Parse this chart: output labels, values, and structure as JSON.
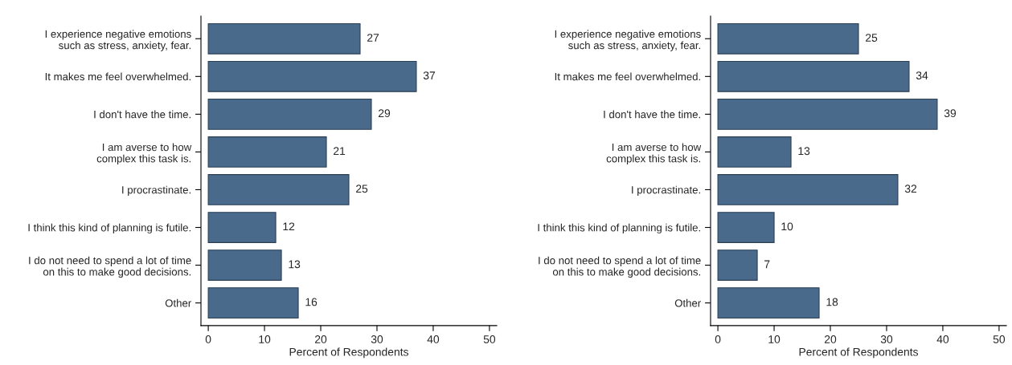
{
  "chart_data": [
    {
      "type": "bar",
      "orientation": "horizontal",
      "xlabel": "Percent of Respondents",
      "categories": [
        "I experience negative emotions\nsuch as stress, anxiety, fear.",
        "It makes me feel overwhelmed.",
        "I don't have the time.",
        "I am averse to how\ncomplex this task is.",
        "I procrastinate.",
        "I think this kind of planning is futile.",
        "I do not need to spend a lot of time\non this to make good decisions.",
        "Other"
      ],
      "values": [
        27,
        37,
        29,
        21,
        25,
        12,
        13,
        16
      ],
      "color": "#4a6a8c",
      "xlim": [
        -1.3,
        51.3
      ],
      "xticks": [
        0,
        10,
        20,
        30,
        40,
        50
      ],
      "data_labels": true,
      "grid": false,
      "legend": false
    },
    {
      "type": "bar",
      "orientation": "horizontal",
      "xlabel": "Percent of Respondents",
      "categories": [
        "I experience negative emotions\nsuch as stress, anxiety, fear.",
        "It makes me feel overwhelmed.",
        "I don't have the time.",
        "I am averse to how\ncomplex this task is.",
        "I procrastinate.",
        "I think this kind of planning is futile.",
        "I do not need to spend a lot of time\non this to make good decisions.",
        "Other"
      ],
      "values": [
        25,
        34,
        39,
        13,
        32,
        10,
        7,
        18
      ],
      "color": "#4a6a8c",
      "xlim": [
        -1.3,
        51.3
      ],
      "xticks": [
        0,
        10,
        20,
        30,
        40,
        50
      ],
      "data_labels": true,
      "grid": false,
      "legend": false
    }
  ]
}
